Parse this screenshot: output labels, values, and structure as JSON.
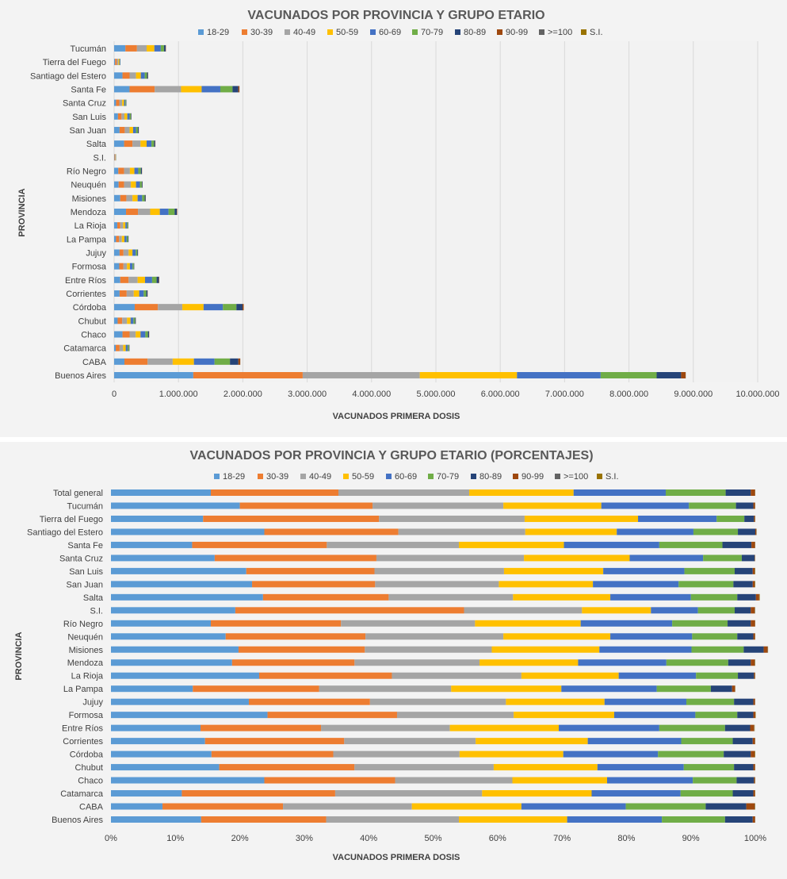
{
  "chart_data": [
    {
      "type": "bar",
      "orientation": "horizontal",
      "stacked": true,
      "title": "VACUNADOS POR PROVINCIA Y GRUPO ETARIO",
      "xlabel": "VACUNADOS PRIMERA  DOSIS",
      "ylabel": "PROVINCIA",
      "xlim": [
        0,
        10000000
      ],
      "x_ticks": [
        0,
        1000000,
        2000000,
        3000000,
        4000000,
        5000000,
        6000000,
        7000000,
        8000000,
        9000000,
        10000000
      ],
      "x_tick_labels": [
        "0",
        "1.000.000",
        "2.000.000",
        "3.000.000",
        "4.000.000",
        "5.000.000",
        "6.000.000",
        "7.000.000",
        "8.000.000",
        "9.000.000",
        "10.000.000"
      ],
      "legend_position": "top",
      "grid": "vertical",
      "categories": [
        "Buenos Aires",
        "CABA",
        "Catamarca",
        "Chaco",
        "Chubut",
        "Córdoba",
        "Corrientes",
        "Entre Ríos",
        "Formosa",
        "Jujuy",
        "La Pampa",
        "La Rioja",
        "Mendoza",
        "Misiones",
        "Neuquén",
        "Río Negro",
        "S.I.",
        "Salta",
        "San Juan",
        "San Luis",
        "Santa Cruz",
        "Santa Fe",
        "Santiago del Estero",
        "Tierra del Fuego",
        "Tucumán"
      ],
      "series": [
        {
          "name": "18-29",
          "values": [
            1230000,
            160000,
            25000,
            130000,
            55000,
            320000,
            85000,
            95000,
            80000,
            85000,
            30000,
            50000,
            185000,
            95000,
            70000,
            65000,
            6000,
            155000,
            85000,
            60000,
            30000,
            240000,
            130000,
            15000,
            175000
          ]
        },
        {
          "name": "30-39",
          "values": [
            1700000,
            360000,
            60000,
            110000,
            70000,
            360000,
            110000,
            130000,
            65000,
            60000,
            45000,
            45000,
            185000,
            95000,
            85000,
            90000,
            11000,
            130000,
            80000,
            55000,
            50000,
            390000,
            110000,
            27000,
            180000
          ]
        },
        {
          "name": "40-49",
          "values": [
            1820000,
            390000,
            55000,
            95000,
            75000,
            380000,
            110000,
            140000,
            55000,
            80000,
            45000,
            45000,
            190000,
            95000,
            105000,
            90000,
            6000,
            125000,
            75000,
            45000,
            45000,
            410000,
            100000,
            23000,
            150000
          ]
        },
        {
          "name": "50-59",
          "values": [
            1510000,
            330000,
            40000,
            75000,
            55000,
            330000,
            85000,
            115000,
            45000,
            60000,
            40000,
            35000,
            150000,
            80000,
            80000,
            70000,
            4000,
            95000,
            55000,
            45000,
            30000,
            320000,
            75000,
            17000,
            120000
          ]
        },
        {
          "name": "60-69",
          "values": [
            1300000,
            320000,
            30000,
            75000,
            45000,
            300000,
            70000,
            110000,
            40000,
            50000,
            35000,
            25000,
            135000,
            70000,
            60000,
            60000,
            2500,
            75000,
            45000,
            35000,
            20000,
            290000,
            60000,
            11000,
            100000
          ]
        },
        {
          "name": "70-79",
          "values": [
            870000,
            240000,
            20000,
            40000,
            25000,
            210000,
            40000,
            70000,
            20000,
            25000,
            20000,
            15000,
            95000,
            40000,
            30000,
            40000,
            1500,
            40000,
            30000,
            20000,
            10000,
            190000,
            35000,
            4000,
            50000
          ]
        },
        {
          "name": "80-89",
          "values": [
            380000,
            130000,
            8000,
            17000,
            11000,
            95000,
            18000,
            35000,
            7000,
            10000,
            8000,
            5000,
            35000,
            15000,
            11000,
            16000,
            600,
            18000,
            12000,
            8000,
            5000,
            90000,
            16000,
            1200,
            25000
          ]
        },
        {
          "name": "90-99",
          "values": [
            70000,
            30000,
            1400,
            2800,
            1600,
            18000,
            3000,
            6000,
            1000,
            1500,
            1200,
            900,
            6000,
            2500,
            1400,
            2400,
            200,
            3200,
            2000,
            1400,
            700,
            17000,
            2800,
            200,
            4500
          ]
        },
        {
          "name": ">=100",
          "values": [
            1500,
            700,
            50,
            100,
            60,
            500,
            80,
            150,
            40,
            50,
            40,
            30,
            150,
            70,
            40,
            60,
            10,
            80,
            60,
            40,
            20,
            500,
            80,
            10,
            120
          ]
        },
        {
          "name": "S.I.",
          "values": [
            900,
            300,
            30,
            60,
            40,
            300,
            60,
            80,
            30,
            40,
            30,
            20,
            100,
            50,
            30,
            40,
            10,
            50,
            40,
            30,
            15,
            300,
            50,
            5,
            80
          ]
        }
      ],
      "colors": [
        "#5b9bd5",
        "#ed7d31",
        "#a5a5a5",
        "#ffc000",
        "#4472c4",
        "#70ad47",
        "#264478",
        "#9e480e",
        "#636363",
        "#997300"
      ]
    },
    {
      "type": "bar",
      "orientation": "horizontal",
      "stacked": true,
      "percent": true,
      "title": "VACUNADOS POR PROVINCIA Y GRUPO ETARIO (PORCENTAJES)",
      "xlabel": "VACUNADOS PRIMERA  DOSIS",
      "ylabel": "PROVINCIA",
      "xlim": [
        0,
        100
      ],
      "x_ticks": [
        0,
        10,
        20,
        30,
        40,
        50,
        60,
        70,
        80,
        90,
        100
      ],
      "x_tick_labels": [
        "0%",
        "10%",
        "20%",
        "30%",
        "40%",
        "50%",
        "60%",
        "70%",
        "80%",
        "90%",
        "100%"
      ],
      "legend_position": "top",
      "grid": "vertical",
      "categories": [
        "Buenos Aires",
        "CABA",
        "Catamarca",
        "Chaco",
        "Chubut",
        "Córdoba",
        "Corrientes",
        "Entre Ríos",
        "Formosa",
        "Jujuy",
        "La Pampa",
        "La Rioja",
        "Mendoza",
        "Misiones",
        "Neuquén",
        "Río Negro",
        "S.I.",
        "Salta",
        "San Juan",
        "San Luis",
        "Santa Cruz",
        "Santa Fe",
        "Santiago del Estero",
        "Tierra del Fuego",
        "Tucumán",
        "Total general"
      ],
      "series": [
        {
          "name": "18-29",
          "values": [
            14.0,
            8.0,
            11.0,
            23.8,
            16.8,
            15.6,
            14.6,
            13.9,
            24.3,
            21.4,
            12.7,
            23.0,
            18.8,
            19.8,
            17.8,
            15.5,
            19.3,
            23.6,
            21.9,
            21.0,
            16.1,
            12.6,
            23.8,
            14.3,
            20.0,
            15.5
          ]
        },
        {
          "name": "30-39",
          "values": [
            19.4,
            18.7,
            23.8,
            20.3,
            21.0,
            18.9,
            21.6,
            18.7,
            20.1,
            18.8,
            19.6,
            20.6,
            19.0,
            19.6,
            21.7,
            20.2,
            35.5,
            19.5,
            19.1,
            19.9,
            25.1,
            20.9,
            20.8,
            27.3,
            20.6,
            19.8
          ]
        },
        {
          "name": "40-49",
          "values": [
            20.6,
            20.0,
            22.8,
            18.2,
            21.6,
            19.6,
            20.4,
            20.0,
            18.1,
            21.1,
            20.5,
            20.1,
            19.4,
            19.7,
            21.4,
            20.8,
            18.3,
            19.3,
            19.2,
            20.1,
            22.9,
            20.5,
            19.7,
            22.6,
            20.3,
            20.3
          ]
        },
        {
          "name": "50-59",
          "values": [
            16.8,
            17.0,
            17.0,
            14.7,
            16.1,
            16.1,
            17.4,
            16.9,
            15.6,
            15.3,
            17.1,
            15.1,
            15.3,
            16.7,
            16.6,
            16.4,
            10.7,
            15.1,
            14.6,
            15.4,
            16.4,
            16.3,
            14.2,
            17.6,
            15.2,
            16.2
          ]
        },
        {
          "name": "60-69",
          "values": [
            14.7,
            16.2,
            13.8,
            13.3,
            13.4,
            14.7,
            14.5,
            15.6,
            12.6,
            12.7,
            14.8,
            12.0,
            13.7,
            14.3,
            12.7,
            14.2,
            7.3,
            12.5,
            13.3,
            12.6,
            11.4,
            14.8,
            11.9,
            12.2,
            13.6,
            14.3
          ]
        },
        {
          "name": "70-79",
          "values": [
            9.8,
            12.4,
            8.1,
            6.8,
            7.8,
            10.2,
            8.0,
            10.2,
            6.5,
            7.4,
            8.4,
            6.5,
            9.6,
            8.1,
            7.0,
            8.6,
            5.7,
            7.2,
            8.5,
            7.8,
            6.0,
            9.8,
            6.9,
            4.3,
            7.3,
            9.3
          ]
        },
        {
          "name": "80-89",
          "values": [
            4.3,
            6.3,
            3.2,
            2.7,
            3.0,
            4.2,
            3.1,
            3.9,
            2.5,
            3.0,
            3.3,
            2.5,
            3.5,
            3.1,
            2.5,
            3.6,
            2.5,
            2.9,
            3.0,
            2.8,
            2.0,
            4.5,
            2.7,
            1.5,
            2.7,
            3.9
          ]
        },
        {
          "name": "90-99",
          "values": [
            0.37,
            1.3,
            0.25,
            0.15,
            0.25,
            0.6,
            0.35,
            0.6,
            0.3,
            0.25,
            0.45,
            0.15,
            0.6,
            0.6,
            0.25,
            0.65,
            0.6,
            0.5,
            0.3,
            0.3,
            0.05,
            0.55,
            0.15,
            0.15,
            0.25,
            0.65
          ]
        },
        {
          "name": ">=100",
          "values": [
            0.02,
            0.05,
            0.02,
            0.02,
            0.03,
            0.03,
            0.03,
            0.05,
            0.02,
            0.03,
            0.02,
            0.02,
            0.05,
            0.05,
            0.02,
            0.03,
            0.05,
            0.03,
            0.03,
            0.03,
            0.02,
            0.03,
            0.03,
            0.02,
            0.03,
            0.03
          ]
        },
        {
          "name": "S.I.",
          "values": [
            0.01,
            0.05,
            0.03,
            0.03,
            0.02,
            0.07,
            0.02,
            0.05,
            0.05,
            0.01,
            0.03,
            0.03,
            0.05,
            0.03,
            0.03,
            0.02,
            0.04,
            0.07,
            0.07,
            0.07,
            0.02,
            0.02,
            0.03,
            0.03,
            0.02,
            0.02
          ]
        }
      ],
      "colors": [
        "#5b9bd5",
        "#ed7d31",
        "#a5a5a5",
        "#ffc000",
        "#4472c4",
        "#70ad47",
        "#264478",
        "#9e480e",
        "#636363",
        "#997300"
      ]
    }
  ]
}
